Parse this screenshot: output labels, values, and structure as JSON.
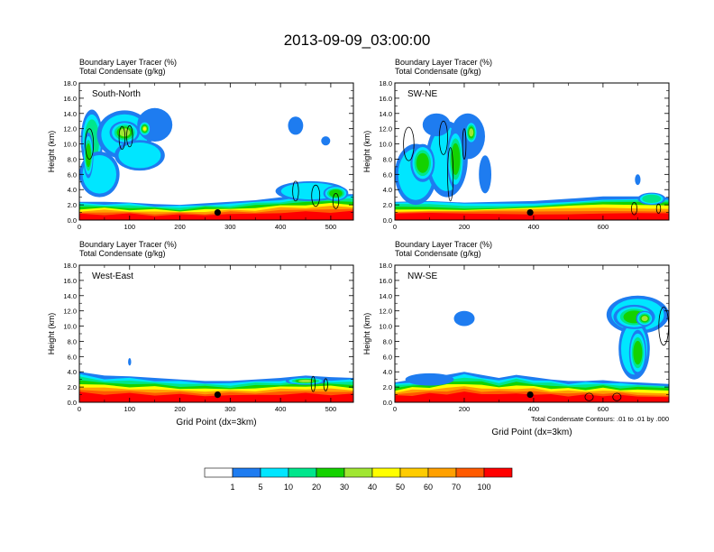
{
  "chart_data": {
    "type": "heatmap",
    "title": "2013-09-09_03:00:00",
    "panels": [
      {
        "id": "south-north",
        "label": "South-North",
        "subtitle_line1": "Boundary Layer Tracer   (%)",
        "subtitle_line2": "Total Condensate   (g/kg)",
        "ylabel": "Height (km)",
        "xlabel": "",
        "xlim": [
          0,
          545
        ],
        "ylim": [
          0,
          18
        ],
        "xticks": [
          0,
          100,
          200,
          300,
          400,
          500
        ],
        "yticks": [
          "0.0",
          "2.0",
          "4.0",
          "6.0",
          "8.0",
          "10.0",
          "12.0",
          "14.0",
          "16.0",
          "18.0"
        ],
        "marker": {
          "x": 275,
          "y": 1.0
        },
        "bl_top_profile": [
          [
            0,
            2.4
          ],
          [
            50,
            2.4
          ],
          [
            100,
            2.3
          ],
          [
            150,
            2.1
          ],
          [
            200,
            2.0
          ],
          [
            250,
            2.2
          ],
          [
            300,
            2.4
          ],
          [
            350,
            2.6
          ],
          [
            400,
            3.0
          ],
          [
            450,
            3.3
          ],
          [
            500,
            3.4
          ],
          [
            545,
            3.4
          ]
        ],
        "blobs": [
          {
            "x": 25,
            "y": 10.5,
            "rx": 22,
            "ry": 4.0,
            "level": 3
          },
          {
            "x": 90,
            "y": 11.2,
            "rx": 55,
            "ry": 3.2,
            "level": 2
          },
          {
            "x": 150,
            "y": 12.5,
            "rx": 35,
            "ry": 2.2,
            "level": 1
          },
          {
            "x": 40,
            "y": 6.0,
            "rx": 40,
            "ry": 3.0,
            "level": 2
          },
          {
            "x": 120,
            "y": 8.5,
            "rx": 50,
            "ry": 2.0,
            "level": 2
          },
          {
            "x": 90,
            "y": 11.5,
            "rx": 30,
            "ry": 1.5,
            "level": 5
          },
          {
            "x": 130,
            "y": 12.0,
            "rx": 12,
            "ry": 1.0,
            "level": 6
          },
          {
            "x": 18,
            "y": 8.5,
            "rx": 10,
            "ry": 3.0,
            "level": 4
          },
          {
            "x": 430,
            "y": 12.4,
            "rx": 15,
            "ry": 1.2,
            "level": 1
          },
          {
            "x": 490,
            "y": 10.4,
            "rx": 9,
            "ry": 0.6,
            "level": 1
          },
          {
            "x": 460,
            "y": 3.8,
            "rx": 70,
            "ry": 1.3,
            "level": 2
          },
          {
            "x": 510,
            "y": 3.5,
            "rx": 25,
            "ry": 1.0,
            "level": 4
          }
        ],
        "contours": [
          {
            "x": 20,
            "y": 10.0,
            "rx": 8,
            "ry": 2.0
          },
          {
            "x": 85,
            "y": 10.8,
            "rx": 6,
            "ry": 1.5
          },
          {
            "x": 100,
            "y": 11.0,
            "rx": 6,
            "ry": 1.4
          },
          {
            "x": 430,
            "y": 3.8,
            "rx": 6,
            "ry": 1.3
          },
          {
            "x": 470,
            "y": 3.2,
            "rx": 8,
            "ry": 1.4
          },
          {
            "x": 510,
            "y": 2.5,
            "rx": 6,
            "ry": 1.0
          }
        ]
      },
      {
        "id": "sw-ne",
        "label": "SW-NE",
        "subtitle_line1": "Boundary Layer Tracer   (%)",
        "subtitle_line2": "Total Condensate   (g/kg)",
        "ylabel": "Height (km)",
        "xlabel": "",
        "xlim": [
          0,
          790
        ],
        "ylim": [
          0,
          18
        ],
        "xticks": [
          0,
          200,
          400,
          600
        ],
        "yticks": [
          "0.0",
          "2.0",
          "4.0",
          "6.0",
          "8.0",
          "10.0",
          "12.0",
          "14.0",
          "16.0",
          "18.0"
        ],
        "marker": {
          "x": 390,
          "y": 1.0
        },
        "bl_top_profile": [
          [
            0,
            2.4
          ],
          [
            100,
            2.5
          ],
          [
            200,
            2.3
          ],
          [
            300,
            2.4
          ],
          [
            400,
            2.5
          ],
          [
            500,
            2.8
          ],
          [
            600,
            3.1
          ],
          [
            700,
            3.1
          ],
          [
            790,
            3.0
          ]
        ],
        "blobs": [
          {
            "x": 60,
            "y": 6.0,
            "rx": 60,
            "ry": 4.0,
            "level": 2
          },
          {
            "x": 150,
            "y": 8.0,
            "rx": 60,
            "ry": 5.0,
            "level": 2
          },
          {
            "x": 210,
            "y": 11.0,
            "rx": 50,
            "ry": 3.0,
            "level": 1
          },
          {
            "x": 120,
            "y": 12.5,
            "rx": 40,
            "ry": 1.5,
            "level": 1
          },
          {
            "x": 80,
            "y": 7.5,
            "rx": 35,
            "ry": 2.5,
            "level": 4
          },
          {
            "x": 175,
            "y": 8.0,
            "rx": 25,
            "ry": 4.0,
            "level": 4
          },
          {
            "x": 220,
            "y": 11.5,
            "rx": 18,
            "ry": 1.5,
            "level": 5
          },
          {
            "x": 260,
            "y": 6.0,
            "rx": 18,
            "ry": 2.5,
            "level": 1
          },
          {
            "x": 700,
            "y": 5.3,
            "rx": 8,
            "ry": 0.7,
            "level": 1
          },
          {
            "x": 740,
            "y": 2.8,
            "rx": 40,
            "ry": 0.8,
            "level": 3
          }
        ],
        "contours": [
          {
            "x": 40,
            "y": 10.0,
            "rx": 15,
            "ry": 2.2
          },
          {
            "x": 140,
            "y": 10.8,
            "rx": 12,
            "ry": 2.2
          },
          {
            "x": 160,
            "y": 6.0,
            "rx": 8,
            "ry": 3.5
          },
          {
            "x": 200,
            "y": 10.0,
            "rx": 5,
            "ry": 2.0
          },
          {
            "x": 690,
            "y": 1.5,
            "rx": 8,
            "ry": 0.8
          },
          {
            "x": 760,
            "y": 1.5,
            "rx": 6,
            "ry": 0.6
          }
        ]
      },
      {
        "id": "west-east",
        "label": "West-East",
        "subtitle_line1": "Boundary Layer Tracer   (%)",
        "subtitle_line2": "Total Condensate   (g/kg)",
        "ylabel": "Height (km)",
        "xlabel": "Grid Point (dx=3km)",
        "xlim": [
          0,
          545
        ],
        "ylim": [
          0,
          18
        ],
        "xticks": [
          0,
          100,
          200,
          300,
          400,
          500
        ],
        "yticks": [
          "0.0",
          "2.0",
          "4.0",
          "6.0",
          "8.0",
          "10.0",
          "12.0",
          "14.0",
          "16.0",
          "18.0"
        ],
        "marker": {
          "x": 275,
          "y": 1.0
        },
        "bl_top_profile": [
          [
            0,
            4.0
          ],
          [
            50,
            3.5
          ],
          [
            100,
            3.4
          ],
          [
            150,
            3.2
          ],
          [
            200,
            3.0
          ],
          [
            250,
            2.8
          ],
          [
            300,
            2.8
          ],
          [
            350,
            3.0
          ],
          [
            400,
            3.2
          ],
          [
            450,
            3.5
          ],
          [
            500,
            3.3
          ],
          [
            545,
            3.2
          ]
        ],
        "blobs": [
          {
            "x": 100,
            "y": 5.3,
            "rx": 3,
            "ry": 0.5,
            "level": 1
          },
          {
            "x": 450,
            "y": 2.8,
            "rx": 40,
            "ry": 0.5,
            "level": 5
          }
        ],
        "contours": [
          {
            "x": 465,
            "y": 2.4,
            "rx": 4,
            "ry": 1.0
          },
          {
            "x": 490,
            "y": 2.3,
            "rx": 4,
            "ry": 0.8
          }
        ]
      },
      {
        "id": "nw-se",
        "label": "NW-SE",
        "subtitle_line1": "Boundary Layer Tracer   (%)",
        "subtitle_line2": "Total Condensate   (g/kg)",
        "ylabel": "Height (km)",
        "xlabel": "Grid Point (dx=3km)",
        "xlim": [
          0,
          790
        ],
        "ylim": [
          0,
          18
        ],
        "xticks": [
          0,
          200,
          400,
          600
        ],
        "yticks": [
          "0.0",
          "2.0",
          "4.0",
          "6.0",
          "8.0",
          "10.0",
          "12.0",
          "14.0",
          "16.0",
          "18.0"
        ],
        "marker": {
          "x": 390,
          "y": 1.0
        },
        "bl_top_profile": [
          [
            0,
            2.6
          ],
          [
            50,
            3.0
          ],
          [
            100,
            3.3
          ],
          [
            150,
            3.6
          ],
          [
            200,
            4.0
          ],
          [
            250,
            3.6
          ],
          [
            300,
            3.2
          ],
          [
            350,
            3.6
          ],
          [
            400,
            3.3
          ],
          [
            450,
            3.0
          ],
          [
            500,
            2.8
          ],
          [
            550,
            2.8
          ],
          [
            600,
            2.9
          ],
          [
            650,
            2.7
          ],
          [
            700,
            2.6
          ],
          [
            790,
            2.4
          ]
        ],
        "blobs": [
          {
            "x": 200,
            "y": 11.0,
            "rx": 30,
            "ry": 1.0,
            "level": 1
          },
          {
            "x": 700,
            "y": 11.5,
            "rx": 90,
            "ry": 2.5,
            "level": 2
          },
          {
            "x": 690,
            "y": 7.0,
            "rx": 45,
            "ry": 4.0,
            "level": 2
          },
          {
            "x": 690,
            "y": 11.2,
            "rx": 60,
            "ry": 1.6,
            "level": 4
          },
          {
            "x": 700,
            "y": 6.5,
            "rx": 25,
            "ry": 3.0,
            "level": 4
          },
          {
            "x": 720,
            "y": 11.0,
            "rx": 25,
            "ry": 1.0,
            "level": 5
          },
          {
            "x": 100,
            "y": 3.0,
            "rx": 70,
            "ry": 0.8,
            "level": 1
          }
        ],
        "contours": [
          {
            "x": 775,
            "y": 10.0,
            "rx": 14,
            "ry": 2.5
          },
          {
            "x": 560,
            "y": 0.7,
            "rx": 12,
            "ry": 0.5
          },
          {
            "x": 640,
            "y": 0.7,
            "rx": 12,
            "ry": 0.5
          }
        ],
        "note": "Total Condensate Contours: .01 to .01 by .000"
      }
    ],
    "colorbar": {
      "levels": [
        "1",
        "5",
        "10",
        "20",
        "30",
        "40",
        "50",
        "60",
        "70",
        "100"
      ],
      "colors": [
        "#ffffff",
        "#1e7cf0",
        "#00e6ff",
        "#00e68c",
        "#14d200",
        "#a0e632",
        "#ffff00",
        "#ffcc00",
        "#ffa000",
        "#ff5a00",
        "#ff0000"
      ]
    }
  }
}
